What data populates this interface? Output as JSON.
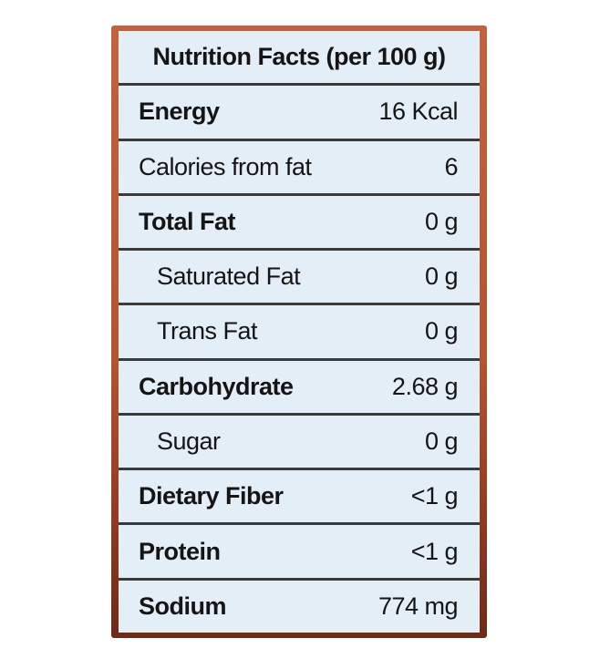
{
  "title": "Nutrition Facts (per 100 g)",
  "rows": [
    {
      "label": "Energy",
      "value": "16  Kcal"
    },
    {
      "label": "Calories from fat",
      "value": "6"
    },
    {
      "label": "Total Fat",
      "value": "0 g"
    },
    {
      "label": "Saturated Fat",
      "value": "0 g"
    },
    {
      "label": "Trans Fat",
      "value": "0 g"
    },
    {
      "label": "Carbohydrate",
      "value": "2.68 g"
    },
    {
      "label": "Sugar",
      "value": "0 g"
    },
    {
      "label": "Dietary Fiber",
      "value": "<1 g"
    },
    {
      "label": "Protein",
      "value": "<1 g"
    },
    {
      "label": "Sodium",
      "value": "774 mg"
    }
  ],
  "colors": {
    "frame": "#b4532f",
    "cell": "#e4eef7",
    "divider": "#3b3b3b"
  }
}
